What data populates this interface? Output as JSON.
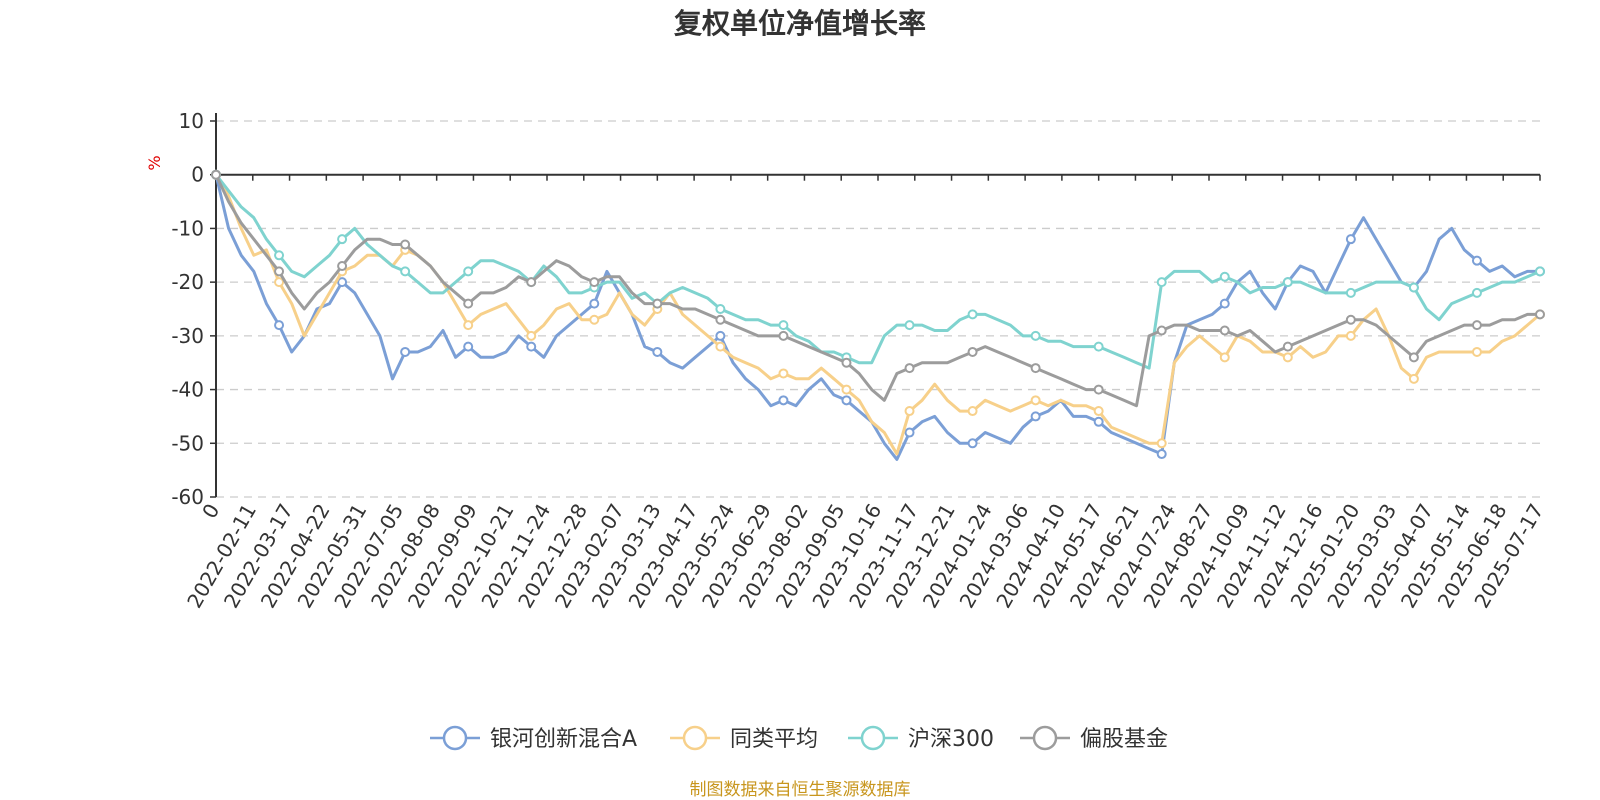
{
  "chart_data": {
    "type": "line",
    "title": "复权单位净值增长率",
    "ylabel": "%",
    "ylim": [
      -60,
      10
    ],
    "yticks": [
      10,
      0,
      -10,
      -20,
      -30,
      -40,
      -50,
      -60
    ],
    "x_tick_labels": [
      "0",
      "2022-02-11",
      "2022-03-17",
      "2022-04-22",
      "2022-05-31",
      "2022-07-05",
      "2022-08-08",
      "2022-09-09",
      "2022-10-21",
      "2022-11-24",
      "2022-12-28",
      "2023-02-07",
      "2023-03-13",
      "2023-04-17",
      "2023-05-24",
      "2023-06-29",
      "2023-08-02",
      "2023-09-05",
      "2023-10-16",
      "2023-11-17",
      "2023-12-21",
      "2024-01-24",
      "2024-03-06",
      "2024-04-10",
      "2024-05-17",
      "2024-06-21",
      "2024-07-24",
      "2024-08-27",
      "2024-10-09",
      "2024-11-12",
      "2024-12-16",
      "2025-01-20",
      "2025-03-03",
      "2025-04-07",
      "2025-05-14",
      "2025-06-18",
      "2025-07-17"
    ],
    "grid": "dashed-horizontal",
    "legend_position": "bottom-center",
    "series": [
      {
        "name": "银河创新混合A",
        "color": "#7b9fd6",
        "values": [
          0,
          -10,
          -15,
          -18,
          -24,
          -28,
          -33,
          -30,
          -25,
          -24,
          -20,
          -22,
          -26,
          -30,
          -38,
          -33,
          -33,
          -32,
          -29,
          -34,
          -32,
          -34,
          -34,
          -33,
          -30,
          -32,
          -34,
          -30,
          -28,
          -26,
          -24,
          -18,
          -22,
          -26,
          -32,
          -33,
          -35,
          -36,
          -34,
          -32,
          -30,
          -35,
          -38,
          -40,
          -43,
          -42,
          -43,
          -40,
          -38,
          -41,
          -42,
          -44,
          -46,
          -50,
          -53,
          -48,
          -46,
          -45,
          -48,
          -50,
          -50,
          -48,
          -49,
          -50,
          -47,
          -45,
          -44,
          -42,
          -45,
          -45,
          -46,
          -48,
          -49,
          -50,
          -51,
          -52,
          -35,
          -28,
          -27,
          -26,
          -24,
          -20,
          -18,
          -22,
          -25,
          -20,
          -17,
          -18,
          -22,
          -17,
          -12,
          -8,
          -12,
          -16,
          -20,
          -21,
          -18,
          -12,
          -10,
          -14,
          -16,
          -18,
          -17,
          -19,
          -18,
          -18
        ]
      },
      {
        "name": "同类平均",
        "color": "#f7d08a",
        "values": [
          0,
          -4,
          -10,
          -15,
          -14,
          -20,
          -24,
          -30,
          -26,
          -22,
          -18,
          -17,
          -15,
          -15,
          -17,
          -14,
          -15,
          -17,
          -20,
          -24,
          -28,
          -26,
          -25,
          -24,
          -27,
          -30,
          -28,
          -25,
          -24,
          -27,
          -27,
          -26,
          -22,
          -26,
          -28,
          -25,
          -22,
          -26,
          -28,
          -30,
          -32,
          -34,
          -35,
          -36,
          -38,
          -37,
          -38,
          -38,
          -36,
          -38,
          -40,
          -42,
          -46,
          -48,
          -52,
          -44,
          -42,
          -39,
          -42,
          -44,
          -44,
          -42,
          -43,
          -44,
          -43,
          -42,
          -43,
          -42,
          -43,
          -43,
          -44,
          -47,
          -48,
          -49,
          -50,
          -50,
          -35,
          -32,
          -30,
          -32,
          -34,
          -30,
          -31,
          -33,
          -33,
          -34,
          -32,
          -34,
          -33,
          -30,
          -30,
          -27,
          -25,
          -30,
          -36,
          -38,
          -34,
          -33,
          -33,
          -33,
          -33,
          -33,
          -31,
          -30,
          -28,
          -26
        ]
      },
      {
        "name": "沪深300",
        "color": "#7fd3cf",
        "values": [
          0,
          -3,
          -6,
          -8,
          -12,
          -15,
          -18,
          -19,
          -17,
          -15,
          -12,
          -10,
          -13,
          -15,
          -17,
          -18,
          -20,
          -22,
          -22,
          -20,
          -18,
          -16,
          -16,
          -17,
          -18,
          -20,
          -17,
          -19,
          -22,
          -22,
          -21,
          -20,
          -20,
          -23,
          -22,
          -24,
          -22,
          -21,
          -22,
          -23,
          -25,
          -26,
          -27,
          -27,
          -28,
          -28,
          -30,
          -31,
          -33,
          -33,
          -34,
          -35,
          -35,
          -30,
          -28,
          -28,
          -28,
          -29,
          -29,
          -27,
          -26,
          -26,
          -27,
          -28,
          -30,
          -30,
          -31,
          -31,
          -32,
          -32,
          -32,
          -33,
          -34,
          -35,
          -36,
          -20,
          -18,
          -18,
          -18,
          -20,
          -19,
          -20,
          -22,
          -21,
          -21,
          -20,
          -20,
          -21,
          -22,
          -22,
          -22,
          -21,
          -20,
          -20,
          -20,
          -21,
          -25,
          -27,
          -24,
          -23,
          -22,
          -21,
          -20,
          -20,
          -19,
          -18
        ]
      },
      {
        "name": "偏股基金",
        "color": "#9c9c9c",
        "values": [
          0,
          -5,
          -9,
          -12,
          -15,
          -18,
          -22,
          -25,
          -22,
          -20,
          -17,
          -14,
          -12,
          -12,
          -13,
          -13,
          -15,
          -17,
          -20,
          -22,
          -24,
          -22,
          -22,
          -21,
          -19,
          -20,
          -18,
          -16,
          -17,
          -19,
          -20,
          -19,
          -19,
          -22,
          -24,
          -24,
          -24,
          -25,
          -25,
          -26,
          -27,
          -28,
          -29,
          -30,
          -30,
          -30,
          -31,
          -32,
          -33,
          -34,
          -35,
          -37,
          -40,
          -42,
          -37,
          -36,
          -35,
          -35,
          -35,
          -34,
          -33,
          -32,
          -33,
          -34,
          -35,
          -36,
          -37,
          -38,
          -39,
          -40,
          -40,
          -41,
          -42,
          -43,
          -30,
          -29,
          -28,
          -28,
          -29,
          -29,
          -29,
          -30,
          -29,
          -31,
          -33,
          -32,
          -31,
          -30,
          -29,
          -28,
          -27,
          -27,
          -28,
          -30,
          -32,
          -34,
          -31,
          -30,
          -29,
          -28,
          -28,
          -28,
          -27,
          -27,
          -26,
          -26
        ]
      }
    ]
  },
  "source_note": "制图数据来自恒生聚源数据库"
}
